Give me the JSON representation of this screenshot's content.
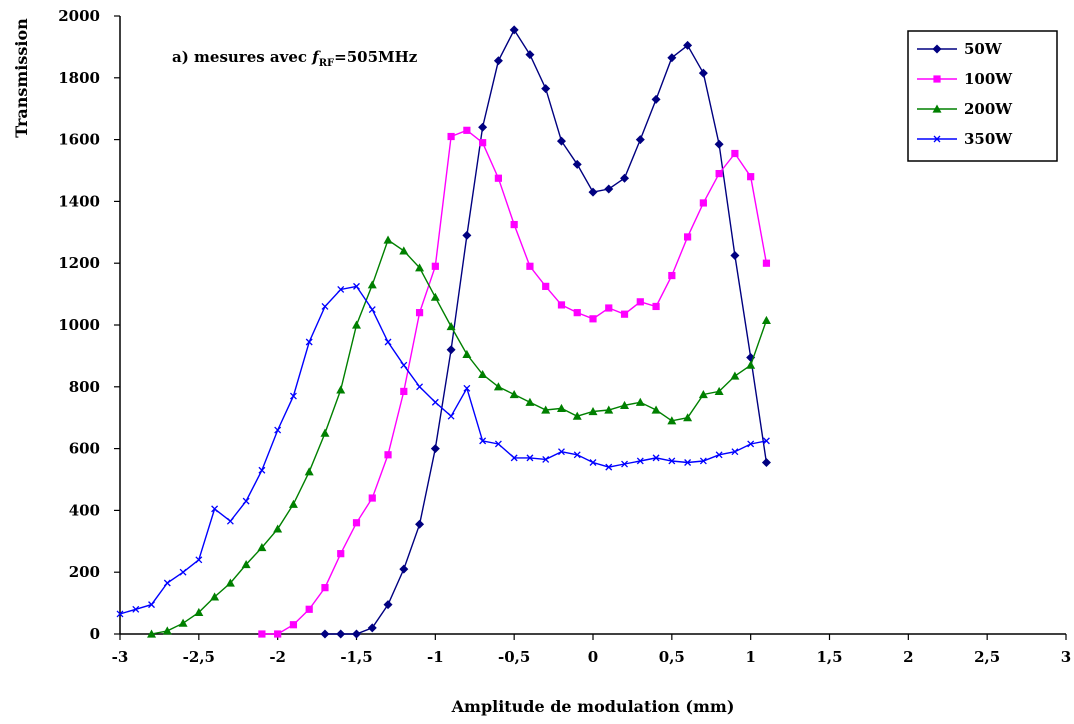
{
  "chart_data": {
    "type": "line",
    "annotation": {
      "prefix": "a) mesures avec ",
      "symbol": "f",
      "subscript": "RF",
      "suffix": "=505MHz"
    },
    "xlabel": "Amplitude de modulation (mm)",
    "ylabel": "Transmission",
    "xlim": [
      -3,
      3
    ],
    "ylim": [
      0,
      2000
    ],
    "x_ticks": [
      -3,
      -2.5,
      -2,
      -1.5,
      -1,
      -0.5,
      0,
      0.5,
      1,
      1.5,
      2,
      2.5,
      3
    ],
    "x_tick_labels": [
      "-3",
      "-2,5",
      "-2",
      "-1,5",
      "-1",
      "-0,5",
      "0",
      "0,5",
      "1",
      "1,5",
      "2",
      "2,5",
      "3"
    ],
    "y_ticks": [
      0,
      200,
      400,
      600,
      800,
      1000,
      1200,
      1400,
      1600,
      1800,
      2000
    ],
    "y_tick_labels": [
      "0",
      "200",
      "400",
      "600",
      "800",
      "1000",
      "1200",
      "1400",
      "1600",
      "1800",
      "2000"
    ],
    "grid": false,
    "legend_position": "top-right",
    "series": [
      {
        "name": "50W",
        "color": "#000080",
        "marker": "diamond",
        "x": [
          -1.7,
          -1.6,
          -1.5,
          -1.4,
          -1.3,
          -1.2,
          -1.1,
          -1.0,
          -0.9,
          -0.8,
          -0.7,
          -0.6,
          -0.5,
          -0.4,
          -0.3,
          -0.2,
          -0.1,
          0.0,
          0.1,
          0.2,
          0.3,
          0.4,
          0.5,
          0.6,
          0.7,
          0.8,
          0.9,
          1.0,
          1.1
        ],
        "y": [
          0,
          0,
          0,
          20,
          95,
          210,
          355,
          600,
          920,
          1290,
          1640,
          1855,
          1955,
          1875,
          1765,
          1595,
          1520,
          1430,
          1440,
          1475,
          1600,
          1730,
          1865,
          1905,
          1815,
          1585,
          1225,
          895,
          555
        ]
      },
      {
        "name": "100W",
        "color": "#ff00ff",
        "marker": "square",
        "x": [
          -2.1,
          -2.0,
          -1.9,
          -1.8,
          -1.7,
          -1.6,
          -1.5,
          -1.4,
          -1.3,
          -1.2,
          -1.1,
          -1.0,
          -0.9,
          -0.8,
          -0.7,
          -0.6,
          -0.5,
          -0.4,
          -0.3,
          -0.2,
          -0.1,
          0.0,
          0.1,
          0.2,
          0.3,
          0.4,
          0.5,
          0.6,
          0.7,
          0.8,
          0.9,
          1.0,
          1.1
        ],
        "y": [
          0,
          0,
          30,
          80,
          150,
          260,
          360,
          440,
          580,
          785,
          1040,
          1190,
          1610,
          1630,
          1590,
          1475,
          1325,
          1190,
          1125,
          1065,
          1040,
          1020,
          1055,
          1035,
          1075,
          1060,
          1160,
          1285,
          1395,
          1490,
          1555,
          1480,
          1200
        ]
      },
      {
        "name": "200W",
        "color": "#008000",
        "marker": "triangle",
        "x": [
          -2.8,
          -2.7,
          -2.6,
          -2.5,
          -2.4,
          -2.3,
          -2.2,
          -2.1,
          -2.0,
          -1.9,
          -1.8,
          -1.7,
          -1.6,
          -1.5,
          -1.4,
          -1.3,
          -1.2,
          -1.1,
          -1.0,
          -0.9,
          -0.8,
          -0.7,
          -0.6,
          -0.5,
          -0.4,
          -0.3,
          -0.2,
          -0.1,
          0.0,
          0.1,
          0.2,
          0.3,
          0.4,
          0.5,
          0.6,
          0.7,
          0.8,
          0.9,
          1.0,
          1.1
        ],
        "y": [
          0,
          10,
          35,
          70,
          120,
          165,
          225,
          280,
          340,
          420,
          525,
          650,
          790,
          1000,
          1130,
          1275,
          1240,
          1185,
          1090,
          995,
          905,
          840,
          800,
          775,
          750,
          725,
          730,
          705,
          720,
          725,
          740,
          750,
          725,
          690,
          700,
          775,
          785,
          835,
          870,
          1015
        ]
      },
      {
        "name": "350W",
        "color": "#0000ff",
        "marker": "x",
        "x": [
          -3.0,
          -2.9,
          -2.8,
          -2.7,
          -2.6,
          -2.5,
          -2.4,
          -2.3,
          -2.2,
          -2.1,
          -2.0,
          -1.9,
          -1.8,
          -1.7,
          -1.6,
          -1.5,
          -1.4,
          -1.3,
          -1.2,
          -1.1,
          -1.0,
          -0.9,
          -0.8,
          -0.7,
          -0.6,
          -0.5,
          -0.4,
          -0.3,
          -0.2,
          -0.1,
          0.0,
          0.1,
          0.2,
          0.3,
          0.4,
          0.5,
          0.6,
          0.7,
          0.8,
          0.9,
          1.0,
          1.1
        ],
        "y": [
          65,
          80,
          95,
          165,
          200,
          240,
          405,
          365,
          430,
          530,
          660,
          770,
          945,
          1060,
          1115,
          1125,
          1050,
          945,
          870,
          800,
          750,
          705,
          795,
          625,
          615,
          570,
          570,
          565,
          590,
          580,
          555,
          540,
          550,
          560,
          570,
          560,
          555,
          560,
          580,
          590,
          615,
          625
        ]
      }
    ]
  }
}
